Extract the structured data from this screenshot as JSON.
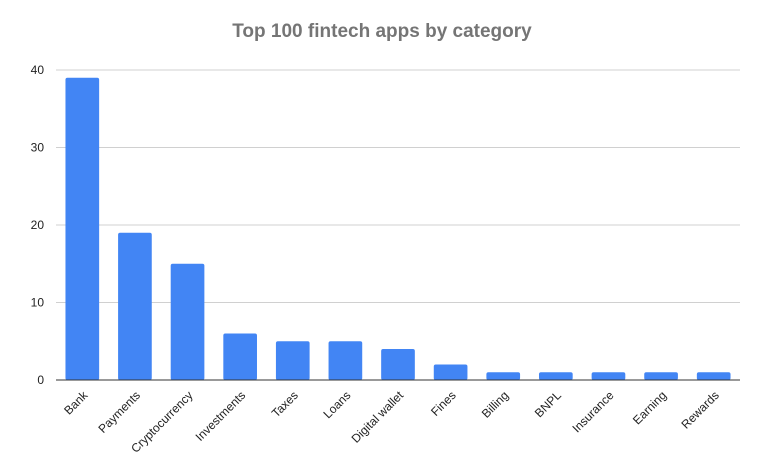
{
  "chart_data": {
    "type": "bar",
    "title": "Top 100 fintech apps by category",
    "categories": [
      "Bank",
      "Payments",
      "Cryptocurrency",
      "Investments",
      "Taxes",
      "Loans",
      "Digital wallet",
      "Fines",
      "Billing",
      "BNPL",
      "Insurance",
      "Earning",
      "Rewards"
    ],
    "values": [
      39,
      19,
      15,
      6,
      5,
      5,
      4,
      2,
      1,
      1,
      1,
      1,
      1
    ],
    "color": "#4285f4",
    "ylim": [
      0,
      40
    ],
    "yticks": [
      0,
      10,
      20,
      30,
      40
    ],
    "grid": true
  }
}
